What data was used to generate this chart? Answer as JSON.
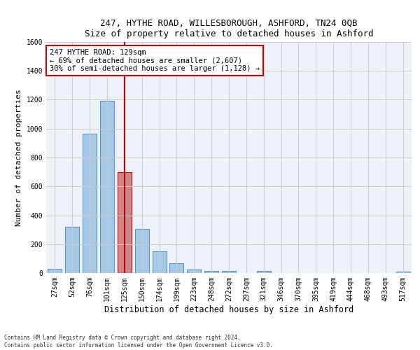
{
  "title_line1": "247, HYTHE ROAD, WILLESBOROUGH, ASHFORD, TN24 0QB",
  "title_line2": "Size of property relative to detached houses in Ashford",
  "xlabel": "Distribution of detached houses by size in Ashford",
  "ylabel": "Number of detached properties",
  "footer_line1": "Contains HM Land Registry data © Crown copyright and database right 2024.",
  "footer_line2": "Contains public sector information licensed under the Open Government Licence v3.0.",
  "categories": [
    "27sqm",
    "52sqm",
    "76sqm",
    "101sqm",
    "125sqm",
    "150sqm",
    "174sqm",
    "199sqm",
    "223sqm",
    "248sqm",
    "272sqm",
    "297sqm",
    "321sqm",
    "346sqm",
    "370sqm",
    "395sqm",
    "419sqm",
    "444sqm",
    "468sqm",
    "493sqm",
    "517sqm"
  ],
  "values": [
    30,
    320,
    965,
    1195,
    700,
    305,
    150,
    70,
    25,
    15,
    15,
    0,
    15,
    0,
    0,
    0,
    0,
    0,
    0,
    0,
    12
  ],
  "bar_color": "#a8c8e8",
  "bar_edge_color": "#5599cc",
  "highlight_bar_index": 4,
  "highlight_bar_color": "#cc8888",
  "highlight_bar_edge_color": "#cc0000",
  "redline_x": 4,
  "annotation_text_line1": "247 HYTHE ROAD: 129sqm",
  "annotation_text_line2": "← 69% of detached houses are smaller (2,607)",
  "annotation_text_line3": "30% of semi-detached houses are larger (1,128) →",
  "annotation_box_color": "#ffffff",
  "annotation_box_edge_color": "#cc0000",
  "ylim": [
    0,
    1600
  ],
  "yticks": [
    0,
    200,
    400,
    600,
    800,
    1000,
    1200,
    1400,
    1600
  ],
  "grid_color": "#cccccc",
  "bg_color": "#eef2f8",
  "title1_fontsize": 9,
  "title2_fontsize": 8.5,
  "xlabel_fontsize": 8.5,
  "ylabel_fontsize": 8,
  "tick_fontsize": 7,
  "annotation_fontsize": 7.5,
  "footer_fontsize": 5.5
}
